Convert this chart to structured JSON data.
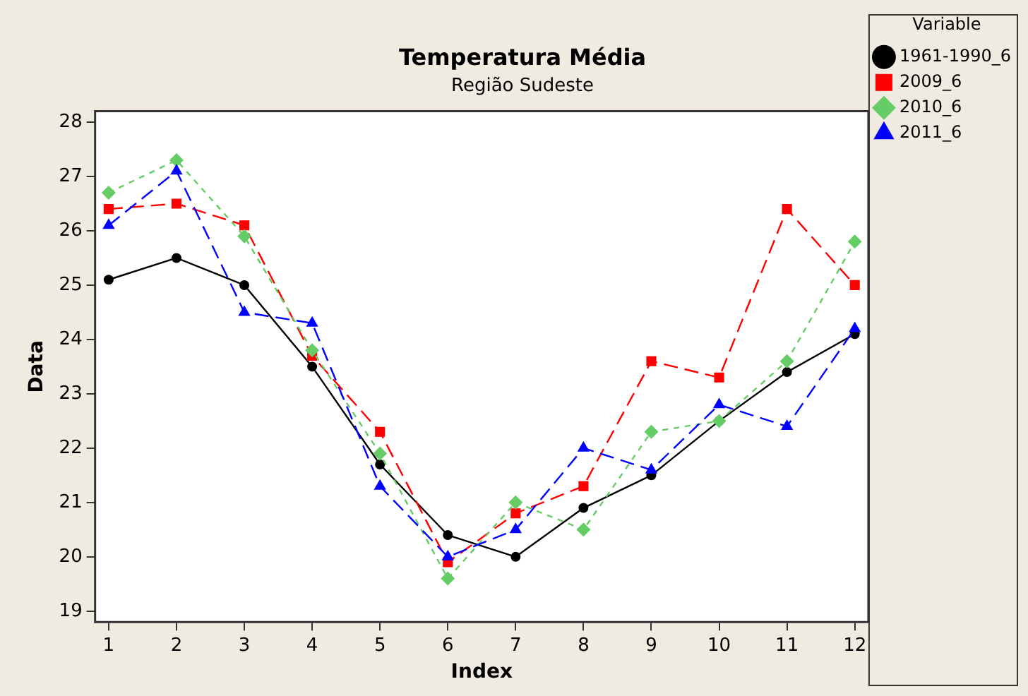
{
  "chart_data": {
    "type": "line",
    "title": "Temperatura Média",
    "subtitle": "Região Sudeste",
    "xlabel": "Index",
    "ylabel": "Data",
    "legend_title": "Variable",
    "legend": "right",
    "grid": false,
    "x": [
      1,
      2,
      3,
      4,
      5,
      6,
      7,
      8,
      9,
      10,
      11,
      12
    ],
    "xlim": [
      0.8,
      12.2
    ],
    "xticks": [
      1,
      2,
      3,
      4,
      5,
      6,
      7,
      8,
      9,
      10,
      11,
      12
    ],
    "ylim": [
      18.8,
      28.2
    ],
    "yticks": [
      19,
      20,
      21,
      22,
      23,
      24,
      25,
      26,
      27,
      28
    ],
    "series": [
      {
        "name": "1961-1990_6",
        "color": "#000000",
        "marker": "circle",
        "line_style": "solid",
        "values": [
          25.1,
          25.5,
          25.0,
          23.5,
          21.7,
          20.4,
          20.0,
          20.9,
          21.5,
          22.5,
          23.4,
          24.1
        ]
      },
      {
        "name": "2009_6",
        "color": "#ff0000",
        "marker": "square",
        "line_style": "dashed",
        "values": [
          26.4,
          26.5,
          26.1,
          23.7,
          22.3,
          19.9,
          20.8,
          21.3,
          23.6,
          23.3,
          26.4,
          25.0
        ]
      },
      {
        "name": "2010_6",
        "color": "#66cc66",
        "marker": "diamond",
        "line_style": "dotted",
        "values": [
          26.7,
          27.3,
          25.9,
          23.8,
          21.9,
          19.6,
          21.0,
          20.5,
          22.3,
          22.5,
          23.6,
          25.8
        ]
      },
      {
        "name": "2011_6",
        "color": "#0000ff",
        "marker": "triangle",
        "line_style": "dashed",
        "values": [
          26.1,
          27.1,
          24.5,
          24.3,
          21.3,
          20.0,
          20.5,
          22.0,
          21.6,
          22.8,
          22.4,
          24.2
        ]
      }
    ]
  }
}
